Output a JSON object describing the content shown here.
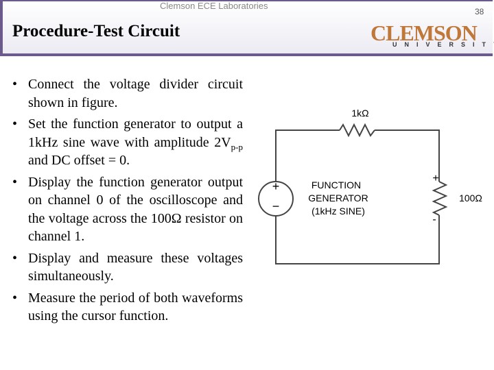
{
  "header": {
    "lab": "Clemson ECE Laboratories",
    "page_number": "38",
    "title": "Procedure-Test Circuit"
  },
  "logo": {
    "name": "CLEMSON",
    "subtitle": "UNIVERSITY"
  },
  "bullets": [
    "Connect the voltage divider circuit shown in figure.",
    [
      "Set the function generator to output a 1kHz sine wave with amplitude 2V",
      "p-p",
      " and DC offset = 0."
    ],
    "Display the function generator output on channel 0 of the oscilloscope and the voltage across the 100Ω resistor on channel 1.",
    "Display and measure these voltages simultaneously.",
    "Measure the period of both waveforms using the cursor function."
  ],
  "circuit": {
    "r1": "1kΩ",
    "source_line1": "FUNCTION",
    "source_line2": "GENERATOR",
    "source_line3": "(1kHz SINE)",
    "source_plus": "+",
    "source_minus": "−",
    "out_plus": "+",
    "out_minus": "-",
    "r2": "100Ω"
  }
}
